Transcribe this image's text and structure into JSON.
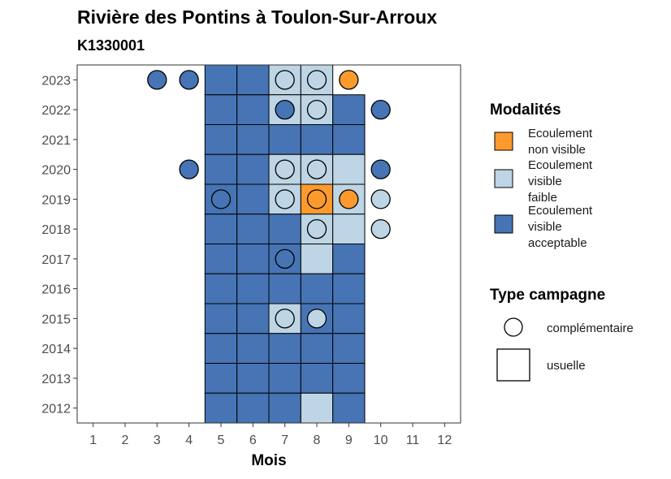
{
  "title": "Rivière des Pontins à Toulon-Sur-Arroux",
  "subtitle": "K1330001",
  "colors": {
    "non_visible": "#FD9A2D",
    "faible": "#BDD5E4",
    "acceptable": "#4674B4"
  },
  "chart_data": {
    "type": "heatmap",
    "xlabel": "Mois",
    "ylabel": "",
    "x_ticks": [
      1,
      2,
      3,
      4,
      5,
      6,
      7,
      8,
      9,
      10,
      11,
      12
    ],
    "y_ticks": [
      2012,
      2013,
      2014,
      2015,
      2016,
      2017,
      2018,
      2019,
      2020,
      2021,
      2022,
      2023
    ],
    "xlim": [
      0.5,
      12.5
    ],
    "ylim": [
      2011.5,
      2023.5
    ],
    "grid": false,
    "legend_placement": "right",
    "legend_modalites": {
      "title": "Modalités",
      "entries": [
        {
          "key": "non_visible",
          "lines": [
            "Ecoulement",
            "non visible"
          ]
        },
        {
          "key": "faible",
          "lines": [
            "Ecoulement",
            "visible",
            "faible"
          ]
        },
        {
          "key": "acceptable",
          "lines": [
            "Ecoulement",
            "visible",
            "acceptable"
          ]
        }
      ]
    },
    "legend_type": {
      "title": "Type campagne",
      "entries": [
        {
          "shape": "circle",
          "label": "complémentaire"
        },
        {
          "shape": "square",
          "label": "usuelle"
        }
      ]
    },
    "usual": [
      {
        "year": 2023,
        "month": 5,
        "value": "acceptable"
      },
      {
        "year": 2023,
        "month": 6,
        "value": "acceptable"
      },
      {
        "year": 2023,
        "month": 7,
        "value": "faible"
      },
      {
        "year": 2023,
        "month": 8,
        "value": "faible"
      },
      {
        "year": 2022,
        "month": 5,
        "value": "acceptable"
      },
      {
        "year": 2022,
        "month": 6,
        "value": "acceptable"
      },
      {
        "year": 2022,
        "month": 7,
        "value": "faible"
      },
      {
        "year": 2022,
        "month": 8,
        "value": "faible"
      },
      {
        "year": 2022,
        "month": 9,
        "value": "acceptable"
      },
      {
        "year": 2021,
        "month": 5,
        "value": "acceptable"
      },
      {
        "year": 2021,
        "month": 6,
        "value": "acceptable"
      },
      {
        "year": 2021,
        "month": 7,
        "value": "acceptable"
      },
      {
        "year": 2021,
        "month": 8,
        "value": "acceptable"
      },
      {
        "year": 2021,
        "month": 9,
        "value": "acceptable"
      },
      {
        "year": 2020,
        "month": 5,
        "value": "acceptable"
      },
      {
        "year": 2020,
        "month": 6,
        "value": "acceptable"
      },
      {
        "year": 2020,
        "month": 7,
        "value": "faible"
      },
      {
        "year": 2020,
        "month": 8,
        "value": "faible"
      },
      {
        "year": 2020,
        "month": 9,
        "value": "faible"
      },
      {
        "year": 2019,
        "month": 5,
        "value": "acceptable"
      },
      {
        "year": 2019,
        "month": 6,
        "value": "acceptable"
      },
      {
        "year": 2019,
        "month": 7,
        "value": "faible"
      },
      {
        "year": 2019,
        "month": 8,
        "value": "non_visible"
      },
      {
        "year": 2019,
        "month": 9,
        "value": "faible"
      },
      {
        "year": 2018,
        "month": 5,
        "value": "acceptable"
      },
      {
        "year": 2018,
        "month": 6,
        "value": "acceptable"
      },
      {
        "year": 2018,
        "month": 7,
        "value": "acceptable"
      },
      {
        "year": 2018,
        "month": 8,
        "value": "faible"
      },
      {
        "year": 2018,
        "month": 9,
        "value": "faible"
      },
      {
        "year": 2017,
        "month": 5,
        "value": "acceptable"
      },
      {
        "year": 2017,
        "month": 6,
        "value": "acceptable"
      },
      {
        "year": 2017,
        "month": 7,
        "value": "acceptable"
      },
      {
        "year": 2017,
        "month": 8,
        "value": "faible"
      },
      {
        "year": 2017,
        "month": 9,
        "value": "acceptable"
      },
      {
        "year": 2016,
        "month": 5,
        "value": "acceptable"
      },
      {
        "year": 2016,
        "month": 6,
        "value": "acceptable"
      },
      {
        "year": 2016,
        "month": 7,
        "value": "acceptable"
      },
      {
        "year": 2016,
        "month": 8,
        "value": "acceptable"
      },
      {
        "year": 2016,
        "month": 9,
        "value": "acceptable"
      },
      {
        "year": 2015,
        "month": 5,
        "value": "acceptable"
      },
      {
        "year": 2015,
        "month": 6,
        "value": "acceptable"
      },
      {
        "year": 2015,
        "month": 7,
        "value": "faible"
      },
      {
        "year": 2015,
        "month": 8,
        "value": "acceptable"
      },
      {
        "year": 2015,
        "month": 9,
        "value": "acceptable"
      },
      {
        "year": 2014,
        "month": 5,
        "value": "acceptable"
      },
      {
        "year": 2014,
        "month": 6,
        "value": "acceptable"
      },
      {
        "year": 2014,
        "month": 7,
        "value": "acceptable"
      },
      {
        "year": 2014,
        "month": 8,
        "value": "acceptable"
      },
      {
        "year": 2014,
        "month": 9,
        "value": "acceptable"
      },
      {
        "year": 2013,
        "month": 5,
        "value": "acceptable"
      },
      {
        "year": 2013,
        "month": 6,
        "value": "acceptable"
      },
      {
        "year": 2013,
        "month": 7,
        "value": "acceptable"
      },
      {
        "year": 2013,
        "month": 8,
        "value": "acceptable"
      },
      {
        "year": 2013,
        "month": 9,
        "value": "acceptable"
      },
      {
        "year": 2012,
        "month": 5,
        "value": "acceptable"
      },
      {
        "year": 2012,
        "month": 6,
        "value": "acceptable"
      },
      {
        "year": 2012,
        "month": 7,
        "value": "acceptable"
      },
      {
        "year": 2012,
        "month": 8,
        "value": "faible"
      },
      {
        "year": 2012,
        "month": 9,
        "value": "acceptable"
      }
    ],
    "complementary": [
      {
        "year": 2023,
        "month": 3,
        "value": "acceptable"
      },
      {
        "year": 2023,
        "month": 4,
        "value": "acceptable"
      },
      {
        "year": 2023,
        "month": 7,
        "value": "faible"
      },
      {
        "year": 2023,
        "month": 8,
        "value": "faible"
      },
      {
        "year": 2023,
        "month": 9,
        "value": "non_visible"
      },
      {
        "year": 2022,
        "month": 7,
        "value": "acceptable"
      },
      {
        "year": 2022,
        "month": 8,
        "value": "faible"
      },
      {
        "year": 2022,
        "month": 10,
        "value": "acceptable"
      },
      {
        "year": 2020,
        "month": 4,
        "value": "acceptable"
      },
      {
        "year": 2020,
        "month": 7,
        "value": "faible"
      },
      {
        "year": 2020,
        "month": 8,
        "value": "faible"
      },
      {
        "year": 2020,
        "month": 10,
        "value": "acceptable"
      },
      {
        "year": 2019,
        "month": 5,
        "value": "acceptable"
      },
      {
        "year": 2019,
        "month": 7,
        "value": "faible"
      },
      {
        "year": 2019,
        "month": 8,
        "value": "non_visible"
      },
      {
        "year": 2019,
        "month": 9,
        "value": "non_visible"
      },
      {
        "year": 2019,
        "month": 10,
        "value": "faible"
      },
      {
        "year": 2018,
        "month": 8,
        "value": "faible"
      },
      {
        "year": 2018,
        "month": 10,
        "value": "faible"
      },
      {
        "year": 2017,
        "month": 7,
        "value": "acceptable"
      },
      {
        "year": 2015,
        "month": 7,
        "value": "faible"
      },
      {
        "year": 2015,
        "month": 8,
        "value": "faible"
      }
    ]
  }
}
